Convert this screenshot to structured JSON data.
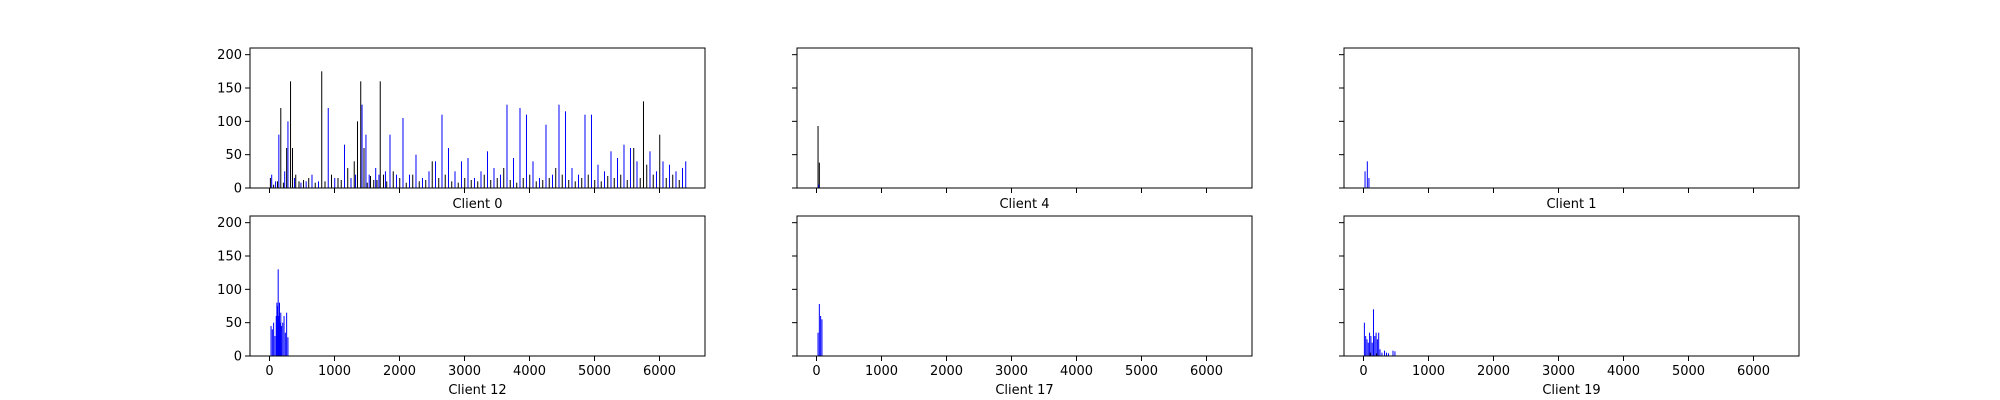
{
  "chart_data": [
    {
      "type": "bar",
      "xlabel": "Client 0",
      "xlim": [
        -300,
        6700
      ],
      "ylim": [
        0,
        210
      ],
      "yticks": [
        0,
        50,
        100,
        150,
        200
      ],
      "xticks": [
        0,
        1000,
        2000,
        3000,
        4000,
        5000,
        6000
      ],
      "show_ytick_labels": true,
      "show_xtick_labels": false,
      "series": [
        {
          "color": "#000000",
          "x": [
            10,
            60,
            120,
            170,
            210,
            260,
            320,
            350,
            400,
            450,
            520,
            600,
            700,
            800,
            850,
            950,
            1050,
            1100,
            1200,
            1300,
            1350,
            1400,
            1450,
            1500,
            1550,
            1600,
            1650,
            1700,
            1750,
            1800,
            1900,
            2000,
            2100,
            2200,
            2300,
            2400,
            2500,
            2600,
            2700,
            2800,
            2900,
            3000,
            3100,
            3200,
            3300,
            3400,
            3500,
            3600,
            3700,
            3800,
            3900,
            4000,
            4100,
            4200,
            4300,
            4400,
            4500,
            4600,
            4700,
            4800,
            4900,
            5000,
            5100,
            5200,
            5300,
            5400,
            5500,
            5600,
            5700,
            5750,
            5800,
            5900,
            6000,
            6100,
            6200,
            6300
          ],
          "values": [
            15,
            5,
            10,
            120,
            8,
            60,
            160,
            60,
            20,
            10,
            12,
            15,
            8,
            175,
            10,
            20,
            15,
            12,
            30,
            40,
            100,
            160,
            60,
            8,
            18,
            12,
            12,
            160,
            20,
            10,
            25,
            15,
            8,
            20,
            10,
            12,
            40,
            15,
            20,
            10,
            8,
            15,
            12,
            10,
            20,
            12,
            15,
            30,
            12,
            8,
            15,
            20,
            10,
            12,
            15,
            30,
            20,
            12,
            10,
            15,
            20,
            12,
            10,
            18,
            15,
            20,
            12,
            60,
            15,
            130,
            35,
            20,
            80,
            15,
            20,
            12
          ]
        },
        {
          "color": "#0000ff",
          "x": [
            30,
            90,
            140,
            230,
            280,
            380,
            480,
            560,
            650,
            750,
            900,
            1000,
            1150,
            1250,
            1320,
            1420,
            1480,
            1530,
            1630,
            1680,
            1780,
            1850,
            1950,
            2050,
            2150,
            2250,
            2350,
            2450,
            2550,
            2650,
            2750,
            2850,
            2950,
            3050,
            3150,
            3250,
            3350,
            3450,
            3550,
            3650,
            3750,
            3850,
            3950,
            4050,
            4150,
            4250,
            4350,
            4450,
            4550,
            4650,
            4750,
            4850,
            4950,
            5050,
            5150,
            5250,
            5350,
            5450,
            5550,
            5650,
            5850,
            5950,
            6050,
            6150,
            6250,
            6350,
            6400
          ],
          "values": [
            20,
            10,
            80,
            25,
            100,
            15,
            8,
            10,
            20,
            10,
            120,
            15,
            65,
            15,
            20,
            125,
            80,
            20,
            30,
            20,
            25,
            80,
            20,
            105,
            20,
            50,
            15,
            25,
            40,
            110,
            60,
            25,
            40,
            45,
            15,
            25,
            55,
            30,
            20,
            125,
            45,
            120,
            110,
            40,
            15,
            95,
            20,
            125,
            115,
            30,
            20,
            110,
            110,
            35,
            25,
            55,
            45,
            65,
            60,
            40,
            55,
            25,
            40,
            35,
            25,
            30,
            40
          ]
        }
      ]
    },
    {
      "type": "bar",
      "xlabel": "Client 4",
      "xlim": [
        -300,
        6700
      ],
      "ylim": [
        0,
        210
      ],
      "yticks": [
        0,
        50,
        100,
        150,
        200
      ],
      "xticks": [
        0,
        1000,
        2000,
        3000,
        4000,
        5000,
        6000
      ],
      "show_ytick_labels": false,
      "show_xtick_labels": false,
      "series": [
        {
          "color": "#000000",
          "x": [
            20,
            40
          ],
          "values": [
            93,
            38
          ]
        },
        {
          "color": "#0000ff",
          "x": [
            30
          ],
          "values": [
            5
          ]
        }
      ]
    },
    {
      "type": "bar",
      "xlabel": "Client 1",
      "xlim": [
        -300,
        6700
      ],
      "ylim": [
        0,
        210
      ],
      "yticks": [
        0,
        50,
        100,
        150,
        200
      ],
      "xticks": [
        0,
        1000,
        2000,
        3000,
        4000,
        5000,
        6000
      ],
      "show_ytick_labels": false,
      "show_xtick_labels": false,
      "series": [
        {
          "color": "#0000ff",
          "x": [
            20,
            55,
            80
          ],
          "values": [
            25,
            40,
            15
          ]
        }
      ]
    },
    {
      "type": "bar",
      "xlabel": "Client 12",
      "xlim": [
        -300,
        6700
      ],
      "ylim": [
        0,
        210
      ],
      "yticks": [
        0,
        50,
        100,
        150,
        200
      ],
      "xticks": [
        0,
        1000,
        2000,
        3000,
        4000,
        5000,
        6000
      ],
      "show_ytick_labels": true,
      "show_xtick_labels": true,
      "series": [
        {
          "color": "#0000ff",
          "x": [
            20,
            40,
            60,
            80,
            100,
            110,
            120,
            130,
            140,
            150,
            160,
            170,
            180,
            200,
            220,
            240,
            260,
            280
          ],
          "values": [
            45,
            40,
            50,
            30,
            60,
            80,
            75,
            130,
            60,
            80,
            50,
            65,
            45,
            50,
            60,
            35,
            65,
            28
          ]
        }
      ]
    },
    {
      "type": "bar",
      "xlabel": "Client 17",
      "xlim": [
        -300,
        6700
      ],
      "ylim": [
        0,
        210
      ],
      "yticks": [
        0,
        50,
        100,
        150,
        200
      ],
      "xticks": [
        0,
        1000,
        2000,
        3000,
        4000,
        5000,
        6000
      ],
      "show_ytick_labels": false,
      "show_xtick_labels": true,
      "series": [
        {
          "color": "#0000ff",
          "x": [
            20,
            40,
            60,
            80
          ],
          "values": [
            35,
            78,
            60,
            55
          ]
        }
      ]
    },
    {
      "type": "bar",
      "xlabel": "Client 19",
      "xlim": [
        -300,
        6700
      ],
      "ylim": [
        0,
        210
      ],
      "yticks": [
        0,
        50,
        100,
        150,
        200
      ],
      "xticks": [
        0,
        1000,
        2000,
        3000,
        4000,
        5000,
        6000
      ],
      "show_ytick_labels": false,
      "show_xtick_labels": true,
      "series": [
        {
          "color": "#0000ff",
          "x": [
            10,
            30,
            50,
            70,
            90,
            110,
            130,
            150,
            170,
            190,
            210,
            230,
            250,
            280,
            320,
            350,
            380,
            450,
            480
          ],
          "values": [
            50,
            30,
            25,
            20,
            35,
            30,
            20,
            70,
            30,
            35,
            25,
            35,
            10,
            5,
            8,
            5,
            4,
            8,
            7
          ]
        },
        {
          "color": "#000000",
          "x": [
            100,
            200
          ],
          "values": [
            5,
            4
          ]
        }
      ]
    }
  ]
}
